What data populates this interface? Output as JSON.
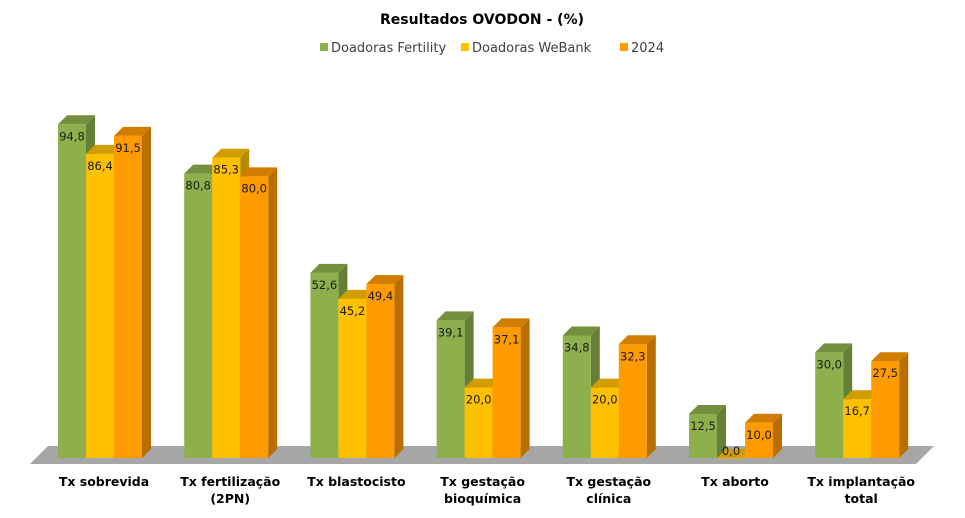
{
  "chart_data": {
    "type": "bar",
    "title": "Resultados OVODON - (%)",
    "categories": [
      [
        "Tx sobrevida"
      ],
      [
        "Tx fertilização",
        "(2PN)"
      ],
      [
        "Tx blastocisto"
      ],
      [
        "Tx gestação",
        "bioquímica"
      ],
      [
        "Tx gestação",
        "clínica"
      ],
      [
        "Tx aborto"
      ],
      [
        "Tx implantação",
        "total"
      ]
    ],
    "series": [
      {
        "name": "Doadoras Fertility",
        "color": "#8db04c",
        "labels": [
          "94,8",
          "80,8",
          "52,6",
          "39,1",
          "34,8",
          "12,5",
          "30,0"
        ],
        "values": [
          94.8,
          80.8,
          52.6,
          39.1,
          34.8,
          12.5,
          30.0
        ]
      },
      {
        "name": "Doadoras WeBank",
        "color": "#ffc000",
        "labels": [
          "86,4",
          "85,3",
          "45,2",
          "20,0",
          "20,0",
          "0,0",
          "16,7"
        ],
        "values": [
          86.4,
          85.3,
          45.2,
          20.0,
          20.0,
          0.0,
          16.7
        ]
      },
      {
        "name": "2024",
        "color": "#ff9a00",
        "labels": [
          "91,5",
          "80,0",
          "49,4",
          "37,1",
          "32,3",
          "10,0",
          "27,5"
        ],
        "values": [
          91.5,
          80.0,
          49.4,
          37.1,
          32.3,
          10.0,
          27.5
        ]
      }
    ],
    "ylim": [
      0,
      100
    ],
    "grid": false,
    "legend_position": "top",
    "style": "3d-bar",
    "floor_color": "#a6a6a6"
  }
}
